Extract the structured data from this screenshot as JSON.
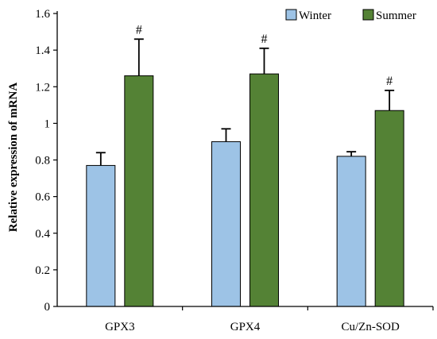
{
  "chart_data": {
    "type": "bar",
    "title": "",
    "xlabel": "",
    "ylabel": "Relative expression of mRNA",
    "categories": [
      "GPX3",
      "GPX4",
      "Cu/Zn-SOD"
    ],
    "ylim": [
      0,
      1.6
    ],
    "yticks": [
      0,
      0.2,
      0.4,
      0.6,
      0.8,
      1,
      1.2,
      1.4,
      1.6
    ],
    "grid": false,
    "legend_position": "top-right",
    "series": [
      {
        "name": "Winter",
        "color": "#9dc3e6",
        "values": [
          0.77,
          0.9,
          0.82
        ],
        "errors": [
          0.07,
          0.07,
          0.025
        ]
      },
      {
        "name": "Summer",
        "color": "#548235",
        "values": [
          1.26,
          1.27,
          1.07
        ],
        "errors": [
          0.2,
          0.14,
          0.11
        ]
      }
    ],
    "annotations": [
      {
        "category": "GPX3",
        "series": "Summer",
        "text": "#"
      },
      {
        "category": "GPX4",
        "series": "Summer",
        "text": "#"
      },
      {
        "category": "Cu/Zn-SOD",
        "series": "Summer",
        "text": "#"
      }
    ]
  }
}
